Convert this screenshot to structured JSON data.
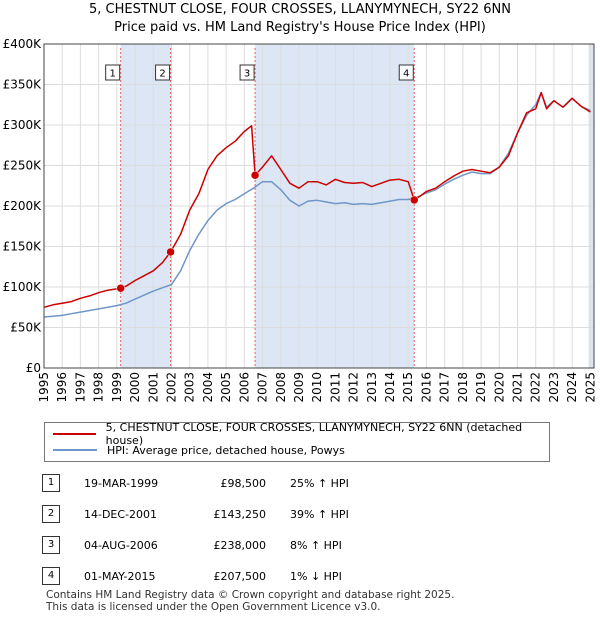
{
  "title_line1": "5, CHESTNUT CLOSE, FOUR CROSSES, LLANYMYNECH, SY22 6NN",
  "title_line2": "Price paid vs. HM Land Registry's House Price Index (HPI)",
  "colors": {
    "price_line": "#cc0000",
    "hpi_line": "#6f96c8",
    "shade": "#dce6f5",
    "grid": "#dddddd"
  },
  "chart_data": {
    "type": "line",
    "xlim": [
      1995,
      2025.2
    ],
    "ylim": [
      0,
      400000
    ],
    "x_ticks": [
      "1995",
      "1996",
      "1997",
      "1998",
      "1999",
      "2000",
      "2001",
      "2002",
      "2003",
      "2004",
      "2005",
      "2006",
      "2007",
      "2008",
      "2009",
      "2010",
      "2011",
      "2012",
      "2013",
      "2014",
      "2015",
      "2016",
      "2017",
      "2018",
      "2019",
      "2020",
      "2021",
      "2022",
      "2023",
      "2024",
      "2025"
    ],
    "y_ticks": [
      {
        "value": 0,
        "label": "£0"
      },
      {
        "value": 50000,
        "label": "£50K"
      },
      {
        "value": 100000,
        "label": "£100K"
      },
      {
        "value": 150000,
        "label": "£150K"
      },
      {
        "value": 200000,
        "label": "£200K"
      },
      {
        "value": 250000,
        "label": "£250K"
      },
      {
        "value": 300000,
        "label": "£300K"
      },
      {
        "value": 350000,
        "label": "£350K"
      },
      {
        "value": 400000,
        "label": "£400K"
      }
    ],
    "series": [
      {
        "name": "5, CHESTNUT CLOSE, FOUR CROSSES, LLANYMYNECH, SY22 6NN (detached house)",
        "color": "#cc0000",
        "x": [
          1995,
          1995.5,
          1996,
          1996.5,
          1997,
          1997.5,
          1998,
          1998.5,
          1999.21,
          1999.5,
          2000,
          2000.5,
          2001,
          2001.5,
          2001.95,
          2002.5,
          2003,
          2003.5,
          2004,
          2004.5,
          2005,
          2005.5,
          2006,
          2006.4,
          2006.59,
          2007,
          2007.5,
          2008,
          2008.5,
          2009,
          2009.5,
          2010,
          2010.5,
          2011,
          2011.5,
          2012,
          2012.5,
          2013,
          2013.5,
          2014,
          2014.5,
          2015,
          2015.33,
          2015.7,
          2016,
          2016.5,
          2017,
          2017.5,
          2018,
          2018.5,
          2019,
          2019.5,
          2020,
          2020.5,
          2021,
          2021.5,
          2022,
          2022.3,
          2022.6,
          2023,
          2023.5,
          2024,
          2024.5,
          2025
        ],
        "y": [
          75000,
          78000,
          80000,
          82000,
          86000,
          89000,
          93000,
          96000,
          98500,
          101000,
          108000,
          114000,
          120000,
          130000,
          143250,
          165000,
          195000,
          215000,
          245000,
          262000,
          272000,
          280000,
          292000,
          299000,
          238000,
          248000,
          262000,
          245000,
          228000,
          222000,
          230000,
          230000,
          226000,
          233000,
          229000,
          228000,
          229000,
          224000,
          228000,
          232000,
          233000,
          230000,
          207500,
          213000,
          218000,
          222000,
          230000,
          237000,
          243000,
          245000,
          243000,
          241000,
          248000,
          262000,
          290000,
          315000,
          320000,
          340000,
          320000,
          330000,
          322000,
          333000,
          323000,
          316000
        ]
      },
      {
        "name": "HPI: Average price, detached house, Powys",
        "color": "#6f96c8",
        "x": [
          1995,
          1995.5,
          1996,
          1996.5,
          1997,
          1997.5,
          1998,
          1998.5,
          1999,
          1999.5,
          2000,
          2000.5,
          2001,
          2001.5,
          2002,
          2002.5,
          2003,
          2003.5,
          2004,
          2004.5,
          2005,
          2005.5,
          2006,
          2006.5,
          2007,
          2007.5,
          2008,
          2008.5,
          2009,
          2009.5,
          2010,
          2010.5,
          2011,
          2011.5,
          2012,
          2012.5,
          2013,
          2013.5,
          2014,
          2014.5,
          2015,
          2015.5,
          2016,
          2016.5,
          2017,
          2017.5,
          2018,
          2018.5,
          2019,
          2019.5,
          2020,
          2020.5,
          2021,
          2021.5,
          2022,
          2022.3,
          2022.6,
          2023,
          2023.5,
          2024,
          2024.5,
          2025
        ],
        "y": [
          63000,
          64000,
          65000,
          67000,
          69000,
          71000,
          73000,
          75000,
          77000,
          80000,
          85000,
          90000,
          95000,
          99000,
          103000,
          120000,
          145000,
          165000,
          182000,
          195000,
          203000,
          208000,
          215000,
          222000,
          230000,
          230000,
          220000,
          207000,
          200000,
          206000,
          207000,
          205000,
          203000,
          204000,
          202000,
          203000,
          202000,
          204000,
          206000,
          208000,
          208000,
          211000,
          216000,
          220000,
          227000,
          233000,
          238000,
          242000,
          240000,
          240000,
          248000,
          265000,
          290000,
          312000,
          325000,
          340000,
          322000,
          330000,
          322000,
          333000,
          323000,
          318000
        ]
      }
    ],
    "sales": [
      {
        "marker": "1",
        "x": 1999.21,
        "y": 98500
      },
      {
        "marker": "2",
        "x": 2001.95,
        "y": 143250
      },
      {
        "marker": "3",
        "x": 2006.59,
        "y": 238000
      },
      {
        "marker": "4",
        "x": 2015.33,
        "y": 207500
      }
    ],
    "shaded_ranges": [
      [
        1999.21,
        2001.95
      ],
      [
        2006.59,
        2015.33
      ],
      [
        2024.9,
        2025.2
      ]
    ]
  },
  "legend": {
    "items": [
      {
        "label": "5, CHESTNUT CLOSE, FOUR CROSSES, LLANYMYNECH, SY22 6NN (detached house)",
        "color": "#cc0000"
      },
      {
        "label": "HPI: Average price, detached house, Powys",
        "color": "#6f96c8"
      }
    ]
  },
  "sales_table": [
    {
      "num": "1",
      "date": "19-MAR-1999",
      "price": "£98,500",
      "hpi": "25% ↑ HPI"
    },
    {
      "num": "2",
      "date": "14-DEC-2001",
      "price": "£143,250",
      "hpi": "39% ↑ HPI"
    },
    {
      "num": "3",
      "date": "04-AUG-2006",
      "price": "£238,000",
      "hpi": "8% ↑ HPI"
    },
    {
      "num": "4",
      "date": "01-MAY-2015",
      "price": "£207,500",
      "hpi": "1% ↓ HPI"
    }
  ],
  "footer": {
    "line1": "Contains HM Land Registry data © Crown copyright and database right 2025.",
    "line2": "This data is licensed under the Open Government Licence v3.0."
  }
}
